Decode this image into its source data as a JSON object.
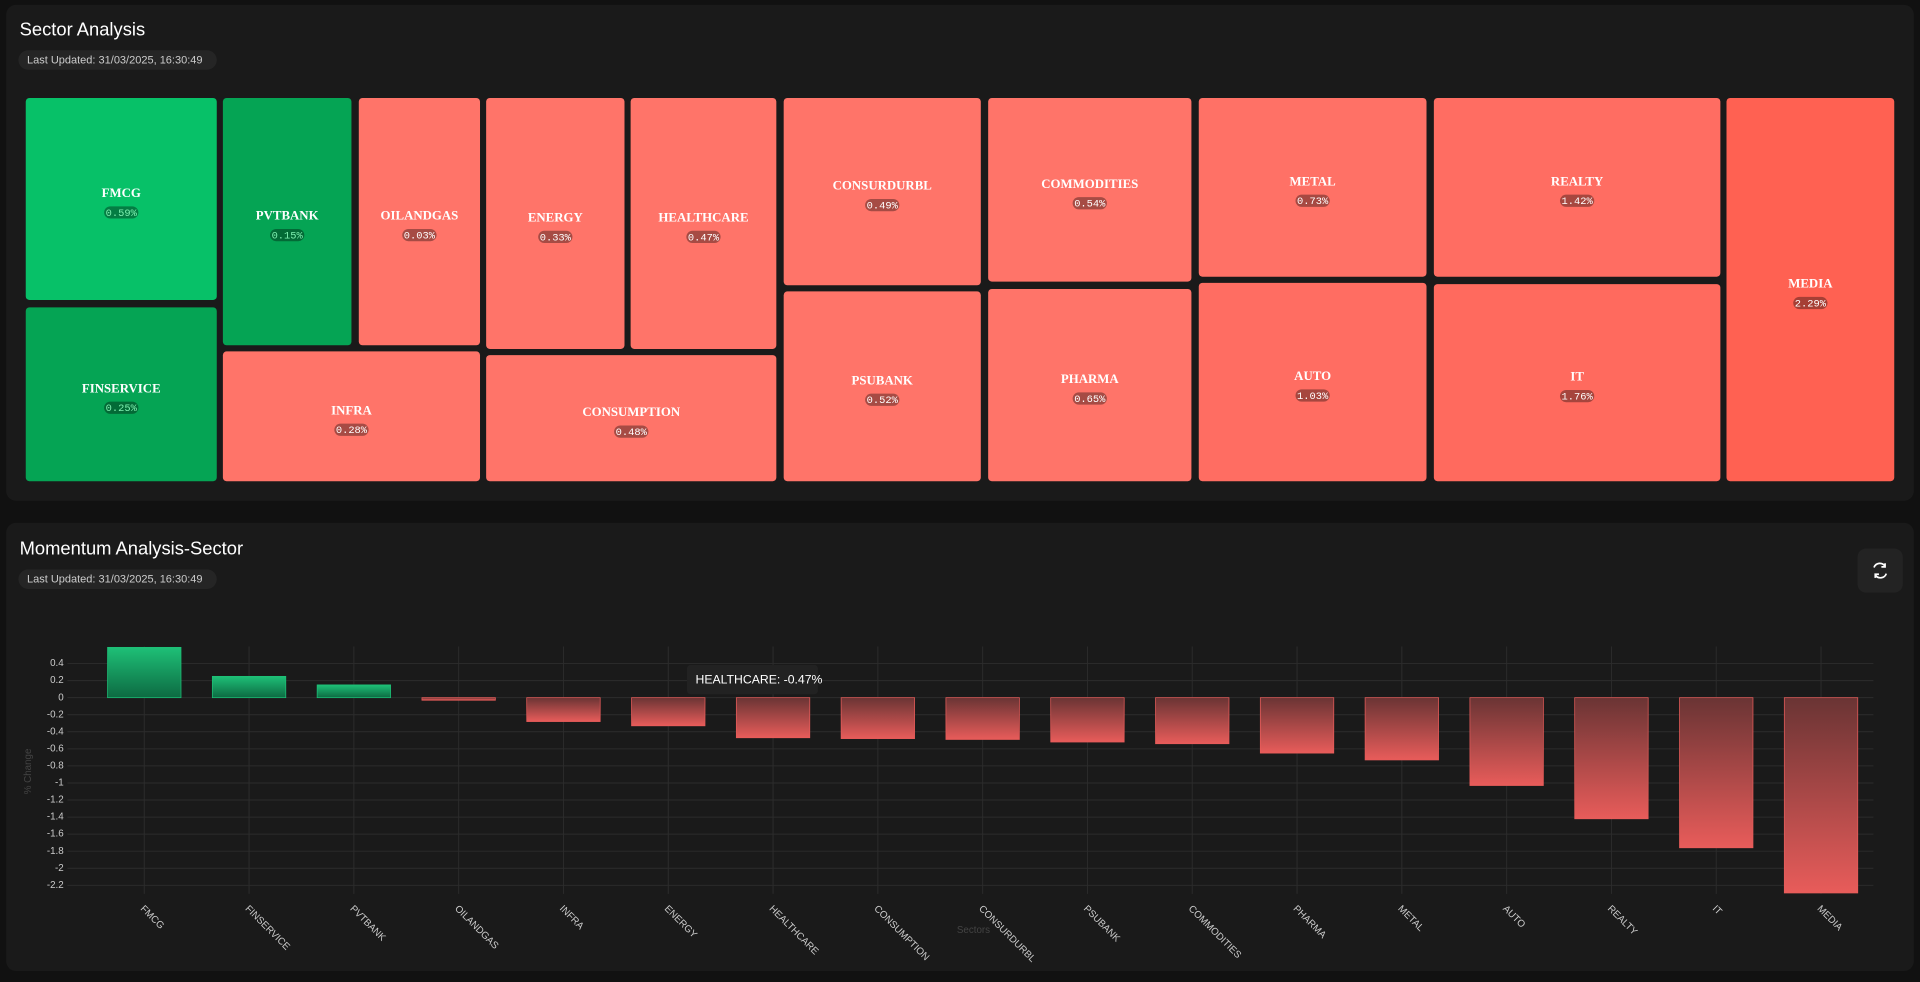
{
  "chart_data": [
    {
      "type": "treemap",
      "title": "Sector Analysis",
      "subtitle": "Last Updated: 31/03/2025, 16:30:49",
      "categories": [
        "FMCG",
        "FINSERVICE",
        "PVTBANK",
        "OILANDGAS",
        "INFRA",
        "ENERGY",
        "HEALTHCARE",
        "CONSUMPTION",
        "CONSURDURBL",
        "PSUBANK",
        "COMMODITIES",
        "PHARMA",
        "METAL",
        "AUTO",
        "REALTY",
        "IT",
        "MEDIA"
      ],
      "values": [
        0.59,
        0.25,
        0.15,
        0.03,
        0.28,
        0.33,
        0.47,
        0.48,
        0.49,
        0.52,
        0.54,
        0.65,
        0.73,
        1.03,
        1.42,
        1.76,
        2.29
      ],
      "value_labels": [
        "0.59%",
        "0.25%",
        "0.15%",
        "0.03%",
        "0.28%",
        "0.33%",
        "0.47%",
        "0.48%",
        "0.49%",
        "0.52%",
        "0.54%",
        "0.65%",
        "0.73%",
        "1.03%",
        "1.42%",
        "1.76%",
        "2.29%"
      ],
      "colors": [
        "#07c168",
        "#05a454",
        "#05a454",
        "#ff7469",
        "#ff7469",
        "#ff7469",
        "#ff7469",
        "#ff7469",
        "#ff7469",
        "#ff7469",
        "#ff7469",
        "#ff7469",
        "#ff7166",
        "#ff6d62",
        "#ff6d62",
        "#ff6a5e",
        "#ff6152"
      ]
    },
    {
      "type": "bar",
      "title": "Momentum Analysis-Sector",
      "subtitle": "Last Updated: 31/03/2025, 16:30:49",
      "x_label": "Sectors",
      "y_label": "% Change",
      "tooltip": "HEALTHCARE: -0.47%",
      "categories": [
        "FMCG",
        "FINSERVICE",
        "PVTBANK",
        "OILANDGAS",
        "INFRA",
        "ENERGY",
        "HEALTHCARE",
        "CONSUMPTION",
        "CONSURDURBL",
        "PSUBANK",
        "COMMODITIES",
        "PHARMA",
        "METAL",
        "AUTO",
        "REALTY",
        "IT",
        "MEDIA"
      ],
      "values": [
        0.59,
        0.25,
        0.15,
        -0.03,
        -0.28,
        -0.33,
        -0.47,
        -0.48,
        -0.49,
        -0.52,
        -0.54,
        -0.65,
        -0.73,
        -1.03,
        -1.42,
        -1.76,
        -2.29
      ],
      "positive_color": "#1ec077",
      "negative_color": "#e85c5a",
      "ylim": [
        -2.3,
        0.6
      ],
      "yticks": [
        0.4,
        0.2,
        0,
        -0.2,
        -0.4,
        -0.6,
        -0.8,
        -1,
        -1.2,
        -1.4,
        -1.6,
        -1.8,
        -2,
        -2.2
      ],
      "grid": true
    }
  ]
}
